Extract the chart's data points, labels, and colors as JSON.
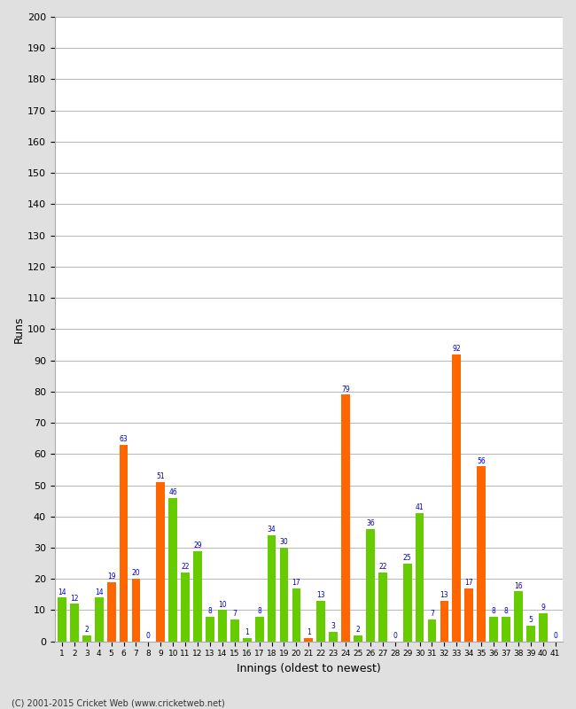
{
  "innings": [
    1,
    2,
    3,
    4,
    5,
    6,
    7,
    8,
    9,
    10,
    11,
    12,
    13,
    14,
    15,
    16,
    17,
    18,
    19,
    20,
    21,
    22,
    23,
    24,
    25,
    26,
    27,
    28,
    29,
    30,
    31,
    32,
    33,
    34,
    35,
    36,
    37,
    38,
    39,
    40,
    41
  ],
  "values": [
    14,
    12,
    2,
    14,
    19,
    63,
    20,
    0,
    51,
    46,
    22,
    29,
    8,
    10,
    7,
    1,
    8,
    34,
    30,
    17,
    1,
    13,
    3,
    79,
    2,
    36,
    22,
    0,
    25,
    41,
    7,
    13,
    92,
    17,
    56,
    8,
    8,
    16,
    5,
    9,
    0
  ],
  "colors": [
    "#66cc00",
    "#66cc00",
    "#66cc00",
    "#66cc00",
    "#ff6600",
    "#ff6600",
    "#ff6600",
    "#ff6600",
    "#ff6600",
    "#66cc00",
    "#66cc00",
    "#66cc00",
    "#66cc00",
    "#66cc00",
    "#66cc00",
    "#66cc00",
    "#66cc00",
    "#66cc00",
    "#66cc00",
    "#66cc00",
    "#ff6600",
    "#66cc00",
    "#66cc00",
    "#ff6600",
    "#66cc00",
    "#66cc00",
    "#66cc00",
    "#ff6600",
    "#66cc00",
    "#66cc00",
    "#66cc00",
    "#ff6600",
    "#ff6600",
    "#ff6600",
    "#ff6600",
    "#66cc00",
    "#66cc00",
    "#66cc00",
    "#66cc00",
    "#66cc00",
    "#66cc00"
  ],
  "xlabel": "Innings (oldest to newest)",
  "ylabel": "Runs",
  "ylim": [
    0,
    200
  ],
  "yticks": [
    0,
    10,
    20,
    30,
    40,
    50,
    60,
    70,
    80,
    90,
    100,
    110,
    120,
    130,
    140,
    150,
    160,
    170,
    180,
    190,
    200
  ],
  "bg_color": "#e0e0e0",
  "plot_bg": "#ffffff",
  "label_color": "#0000cc",
  "footer": "(C) 2001-2015 Cricket Web (www.cricketweb.net)",
  "orange": "#ff6600",
  "green": "#66cc00"
}
